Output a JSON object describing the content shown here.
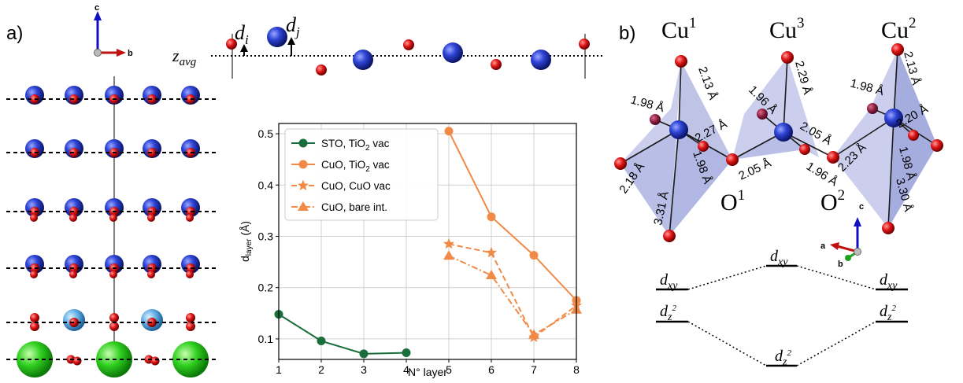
{
  "panel_labels": {
    "a": "a)",
    "b": "b)"
  },
  "axes_small_a": {
    "c": "c",
    "b": "b"
  },
  "axes_small_b": {
    "c": "c",
    "a": "a",
    "b": "b"
  },
  "profile": {
    "zavg_label": "z",
    "zavg_sub": "avg",
    "di": "d",
    "di_sub": "i",
    "dj": "d",
    "dj_sub": "j"
  },
  "chart_data": {
    "type": "line",
    "xlabel": "N° layer",
    "ylabel_main": "d",
    "ylabel_sub": "layer",
    "ylabel_unit": " (Å)",
    "xlim": [
      1,
      8
    ],
    "ylim": [
      0.06,
      0.52
    ],
    "xticks": [
      1,
      2,
      3,
      4,
      5,
      6,
      7,
      8
    ],
    "yticks": [
      0.1,
      0.2,
      0.3,
      0.4,
      0.5
    ],
    "grid": true,
    "legend": "top-left",
    "series": [
      {
        "name": "STO, TiO2 vac",
        "name_pre": "STO, TiO",
        "name_sub": "2",
        "name_post": " vac",
        "color": "#1a6e3c",
        "dash": "solid",
        "marker": "circle",
        "x": [
          1,
          2,
          3,
          4
        ],
        "y": [
          0.148,
          0.096,
          0.071,
          0.073
        ]
      },
      {
        "name": "CuO, TiO2 vac",
        "name_pre": "CuO, TiO",
        "name_sub": "2",
        "name_post": " vac",
        "color": "#f08a46",
        "dash": "solid",
        "marker": "circle",
        "x": [
          5,
          6,
          7,
          8
        ],
        "y": [
          0.505,
          0.338,
          0.263,
          0.175
        ]
      },
      {
        "name": "CuO, CuO vac",
        "name_pre": "CuO, CuO vac",
        "name_sub": "",
        "name_post": "",
        "color": "#f08a46",
        "dash": "dashed",
        "marker": "star",
        "x": [
          5,
          6,
          7,
          8
        ],
        "y": [
          0.285,
          0.268,
          0.103,
          0.165
        ]
      },
      {
        "name": "CuO, bare int.",
        "name_pre": "CuO, bare int.",
        "name_sub": "",
        "name_post": "",
        "color": "#f08a46",
        "dash": "dashdot",
        "marker": "triangle",
        "x": [
          5,
          6,
          7,
          8
        ],
        "y": [
          0.262,
          0.224,
          0.108,
          0.157
        ]
      }
    ]
  },
  "structure_b": {
    "cu_labels": [
      {
        "main": "Cu",
        "sup": "1"
      },
      {
        "main": "Cu",
        "sup": "3"
      },
      {
        "main": "Cu",
        "sup": "2"
      }
    ],
    "o_labels": [
      {
        "main": "O",
        "sup": "1"
      },
      {
        "main": "O",
        "sup": "2"
      }
    ],
    "bond_lengths": [
      "2.13 Å",
      "1.98 Å",
      "2.27 Å",
      "1.98 Å",
      "2.18 Å",
      "3.31 Å",
      "2.29 Å",
      "1.96 Å",
      "2.05 Å",
      "2.05 Å",
      "1.96 Å",
      "2.13 Å",
      "1.98 Å",
      "2.20 Å",
      "2.23 Å",
      "1.98 Å",
      "3.30 Å"
    ]
  },
  "levels": {
    "dxy": "d",
    "dxy_sub": "xy",
    "dz2": "d",
    "dz2_sub": "z",
    "dz2_sup": "2"
  }
}
